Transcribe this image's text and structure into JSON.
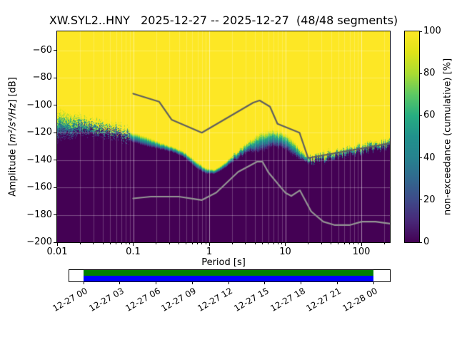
{
  "figure": {
    "title": "XW.SYL2..HNY   2025-12-27 -- 2025-12-27  (48/48 segments)",
    "station": "XW.SYL2..HNY",
    "date_range": "2025-12-27 -- 2025-12-27",
    "segments": "48/48 segments",
    "xlabel": "Period [s]",
    "ylabel_prefix": "Amplitude [",
    "ylabel_math": "m²/s⁴/Hz",
    "ylabel_suffix": "] [dB]",
    "colorbar_label": "non-exceedance (cumulative) [%]"
  },
  "chart_data": {
    "type": "heatmap",
    "title": "XW.SYL2..HNY  2025-12-27 -- 2025-12-27  (48/48 segments)",
    "xlabel": "Period [s]",
    "ylabel": "Amplitude [m²/s⁴/Hz] [dB]",
    "x_scale": "log",
    "xlim": [
      0.01,
      237
    ],
    "ylim": [
      -200,
      -46
    ],
    "grid": true,
    "xticks": [
      0.01,
      0.1,
      1,
      10,
      100
    ],
    "xtick_labels": [
      "0.01",
      "0.1",
      "1",
      "10",
      "100"
    ],
    "yticks": [
      -60,
      -80,
      -100,
      -120,
      -140,
      -160,
      -180,
      -200
    ],
    "ytick_labels": [
      "−60",
      "−80",
      "−100",
      "−120",
      "−140",
      "−160",
      "−180",
      "−200"
    ],
    "colorbar": {
      "label": "non-exceedance (cumulative) [%]",
      "cmap": "viridis",
      "range": [
        0,
        100
      ],
      "ticks": [
        0,
        20,
        40,
        60,
        80,
        100
      ]
    },
    "colormap_stops": [
      [
        0.0,
        68,
        1,
        84
      ],
      [
        0.1,
        72,
        40,
        120
      ],
      [
        0.2,
        62,
        74,
        137
      ],
      [
        0.3,
        49,
        104,
        142
      ],
      [
        0.4,
        38,
        130,
        142
      ],
      [
        0.5,
        33,
        145,
        140
      ],
      [
        0.6,
        39,
        173,
        129
      ],
      [
        0.7,
        92,
        200,
        99
      ],
      [
        0.8,
        170,
        220,
        50
      ],
      [
        0.9,
        223,
        227,
        24
      ],
      [
        1.0,
        253,
        231,
        37
      ]
    ],
    "nonexceedance_boundary": {
      "note": "period [s], dB where non-exceedance reaches ~100% (top), dB where it falls to ~0% (bottom)",
      "points": [
        [
          0.01,
          -106,
          -124
        ],
        [
          0.015,
          -108,
          -122
        ],
        [
          0.022,
          -110,
          -120
        ],
        [
          0.032,
          -112,
          -120
        ],
        [
          0.047,
          -114,
          -121
        ],
        [
          0.068,
          -117,
          -123
        ],
        [
          0.1,
          -120,
          -127
        ],
        [
          0.15,
          -123,
          -130
        ],
        [
          0.22,
          -127,
          -132
        ],
        [
          0.32,
          -130,
          -134
        ],
        [
          0.47,
          -134,
          -138
        ],
        [
          0.68,
          -141,
          -146
        ],
        [
          0.9,
          -146,
          -150
        ],
        [
          1.2,
          -147,
          -150
        ],
        [
          1.6,
          -142,
          -146
        ],
        [
          2.2,
          -135,
          -140
        ],
        [
          3.2,
          -127,
          -134
        ],
        [
          4.7,
          -120,
          -134
        ],
        [
          6.8,
          -118,
          -130
        ],
        [
          10.0,
          -121,
          -132
        ],
        [
          12.0,
          -125,
          -136
        ],
        [
          15.0,
          -131,
          -139
        ],
        [
          20.0,
          -138,
          -142
        ],
        [
          26.0,
          -137,
          -141
        ],
        [
          40.0,
          -134,
          -139
        ],
        [
          60.0,
          -132,
          -137
        ],
        [
          90.0,
          -130,
          -135
        ],
        [
          140.0,
          -128,
          -133
        ],
        [
          237.0,
          -126,
          -131
        ]
      ]
    },
    "noise_models": {
      "nhnm_color": "#5f5f5f",
      "nlnm_color": "#949494",
      "nhnm": [
        [
          0.1,
          -91.5
        ],
        [
          0.22,
          -97.4
        ],
        [
          0.32,
          -110.5
        ],
        [
          0.8,
          -120.0
        ],
        [
          3.8,
          -98.0
        ],
        [
          4.6,
          -96.5
        ],
        [
          6.3,
          -101.0
        ],
        [
          7.9,
          -113.5
        ],
        [
          15.4,
          -120.0
        ],
        [
          20.0,
          -138.5
        ],
        [
          354.8,
          -126.0
        ]
      ],
      "nlnm": [
        [
          0.1,
          -168.0
        ],
        [
          0.17,
          -166.7
        ],
        [
          0.4,
          -166.7
        ],
        [
          0.8,
          -169.2
        ],
        [
          1.24,
          -163.7
        ],
        [
          2.4,
          -148.6
        ],
        [
          4.3,
          -141.1
        ],
        [
          5.0,
          -141.1
        ],
        [
          6.0,
          -149.0
        ],
        [
          10.0,
          -163.8
        ],
        [
          12.0,
          -166.2
        ],
        [
          15.6,
          -162.1
        ],
        [
          21.9,
          -177.5
        ],
        [
          31.6,
          -185.0
        ],
        [
          45.0,
          -187.5
        ],
        [
          70.0,
          -187.5
        ],
        [
          101.0,
          -185.0
        ],
        [
          154.0,
          -185.0
        ],
        [
          328.0,
          -187.5
        ]
      ]
    }
  },
  "coverage": {
    "data_color": "#008000",
    "times_color": "#0000ff",
    "tick_labels": [
      "12-27 00",
      "12-27 03",
      "12-27 06",
      "12-27 09",
      "12-27 12",
      "12-27 15",
      "12-27 18",
      "12-27 21",
      "12-28 00"
    ]
  }
}
